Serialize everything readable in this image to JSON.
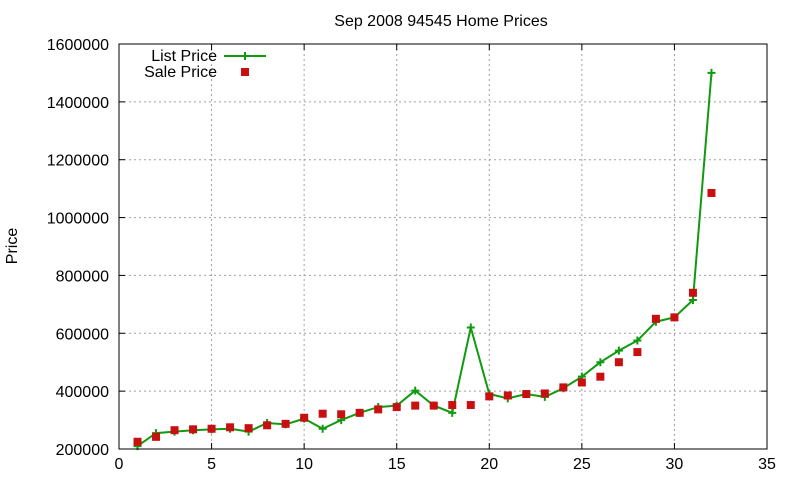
{
  "chart_data": {
    "type": "line",
    "title": "Sep 2008 94545 Home Prices",
    "xlabel": "",
    "ylabel": "Price",
    "xlim": [
      0,
      35
    ],
    "ylim": [
      200000,
      1600000
    ],
    "x_ticks": [
      0,
      5,
      10,
      15,
      20,
      25,
      30,
      35
    ],
    "y_ticks": [
      200000,
      400000,
      600000,
      800000,
      1000000,
      1200000,
      1400000,
      1600000
    ],
    "grid": true,
    "legend_position": "top-left",
    "series": [
      {
        "name": "List Price",
        "style": "line-plus",
        "color": "#109a10",
        "x": [
          1,
          2,
          3,
          4,
          5,
          6,
          7,
          8,
          9,
          10,
          11,
          12,
          13,
          14,
          15,
          16,
          17,
          18,
          19,
          20,
          21,
          22,
          23,
          24,
          25,
          26,
          27,
          28,
          29,
          30,
          31,
          32
        ],
        "values": [
          210000,
          255000,
          260000,
          265000,
          268000,
          270000,
          260000,
          290000,
          285000,
          305000,
          270000,
          300000,
          325000,
          345000,
          350000,
          402000,
          350000,
          325000,
          620000,
          390000,
          375000,
          390000,
          380000,
          410000,
          450000,
          500000,
          540000,
          575000,
          640000,
          655000,
          715000,
          1500000
        ]
      },
      {
        "name": "Sale Price",
        "style": "points-square",
        "color": "#c81010",
        "x": [
          1,
          2,
          3,
          4,
          5,
          6,
          7,
          8,
          9,
          10,
          11,
          12,
          13,
          14,
          15,
          16,
          17,
          18,
          19,
          20,
          21,
          22,
          23,
          24,
          25,
          26,
          27,
          28,
          29,
          30,
          31,
          32
        ],
        "values": [
          225000,
          242000,
          265000,
          268000,
          270000,
          275000,
          272000,
          282000,
          287000,
          308000,
          322000,
          320000,
          325000,
          337000,
          345000,
          350000,
          350000,
          352000,
          352000,
          382000,
          385000,
          390000,
          392000,
          413000,
          430000,
          450000,
          500000,
          535000,
          650000,
          655000,
          740000,
          1085000
        ]
      }
    ]
  }
}
